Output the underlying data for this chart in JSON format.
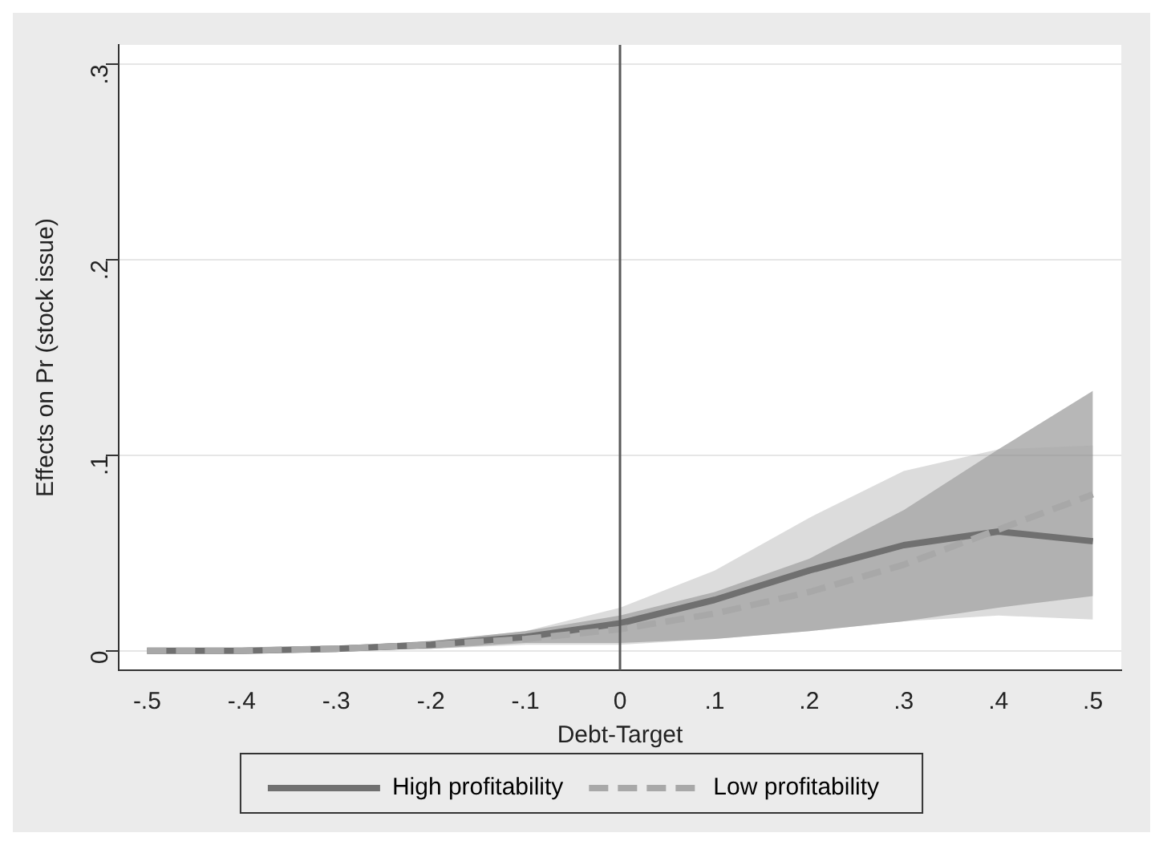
{
  "chart_data": {
    "type": "line",
    "xlabel": "Debt-Target",
    "ylabel": "Effects on Pr (stock issue)",
    "x": [
      -0.5,
      -0.4,
      -0.3,
      -0.2,
      -0.1,
      0,
      0.1,
      0.2,
      0.3,
      0.4,
      0.5
    ],
    "series": [
      {
        "name": "High profitability",
        "color": "#707070",
        "line_style": "solid",
        "values": [
          0,
          0,
          0.001,
          0.003,
          0.007,
          0.014,
          0.026,
          0.041,
          0.054,
          0.061,
          0.056
        ],
        "lower": [
          0,
          0,
          0,
          0.001,
          0.004,
          0.004,
          0.006,
          0.01,
          0.015,
          0.022,
          0.028
        ],
        "upper": [
          0,
          0.001,
          0.002,
          0.005,
          0.01,
          0.018,
          0.03,
          0.047,
          0.072,
          0.103,
          0.133
        ]
      },
      {
        "name": "Low profitability",
        "color": "#a8a8a8",
        "line_style": "dashed",
        "values": [
          0,
          0,
          0.001,
          0.003,
          0.006,
          0.011,
          0.019,
          0.03,
          0.044,
          0.062,
          0.08
        ],
        "lower": [
          0,
          0,
          0,
          0.001,
          0.003,
          0.003,
          0.006,
          0.01,
          0.015,
          0.018,
          0.016
        ],
        "upper": [
          0,
          0.001,
          0.002,
          0.005,
          0.01,
          0.022,
          0.041,
          0.068,
          0.092,
          0.103,
          0.105
        ]
      }
    ],
    "xlim": [
      -0.53,
      0.53
    ],
    "xticks": [
      {
        "value": -0.5,
        "label": "-.5"
      },
      {
        "value": -0.4,
        "label": "-.4"
      },
      {
        "value": -0.3,
        "label": "-.3"
      },
      {
        "value": -0.2,
        "label": "-.2"
      },
      {
        "value": -0.1,
        "label": "-.1"
      },
      0,
      {
        "value": 0.1,
        "label": ".1"
      },
      {
        "value": 0.2,
        "label": ".2"
      },
      {
        "value": 0.3,
        "label": ".3"
      },
      {
        "value": 0.4,
        "label": ".4"
      },
      {
        "value": 0.5,
        "label": ".5"
      }
    ],
    "ylim": [
      -0.01,
      0.31
    ],
    "yticks": [
      0,
      {
        "value": 0.1,
        "label": ".1"
      },
      {
        "value": 0.2,
        "label": ".2"
      },
      {
        "value": 0.3,
        "label": ".3"
      }
    ],
    "ref_lines": [
      {
        "axis": "x",
        "value": 0,
        "color": "#5a5a5a"
      }
    ],
    "grid": "y",
    "legend": "bottom",
    "marker": "none"
  }
}
